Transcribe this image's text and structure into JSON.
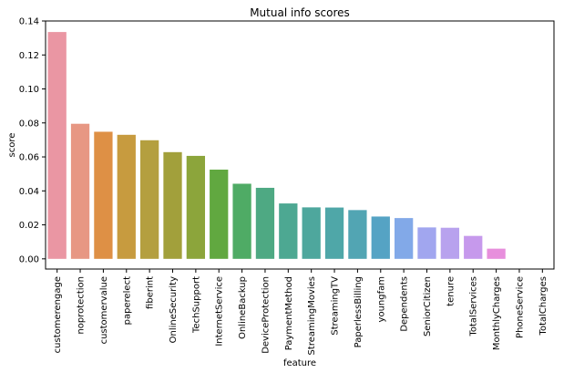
{
  "chart_data": {
    "type": "bar",
    "title": "Mutual info scores",
    "xlabel": "feature",
    "ylabel": "score",
    "ylim": [
      -0.006,
      0.14
    ],
    "yticks": [
      "0.00",
      "0.02",
      "0.04",
      "0.06",
      "0.08",
      "0.10",
      "0.12",
      "0.14"
    ],
    "grid": false,
    "categories": [
      "customerengage",
      "noprotection",
      "customervalue",
      "paperelect",
      "fiberint",
      "OnlineSecurity",
      "TechSupport",
      "InternetService",
      "OnlineBackup",
      "DeviceProtection",
      "PaymentMethod",
      "StreamingMovies",
      "StreamingTV",
      "PaperlessBilling",
      "youngfam",
      "Dependents",
      "SeniorCitizen",
      "tenure",
      "TotalServices",
      "MonthlyCharges",
      "PhoneService",
      "TotalCharges"
    ],
    "values": [
      0.1335,
      0.0795,
      0.0748,
      0.073,
      0.0698,
      0.0628,
      0.0606,
      0.0525,
      0.0442,
      0.0418,
      0.0326,
      0.0303,
      0.0302,
      0.0287,
      0.0249,
      0.024,
      0.0185,
      0.0183,
      0.0135,
      0.006,
      0.0,
      0.0
    ],
    "colors": [
      "#ea96a3",
      "#e79783",
      "#de9045",
      "#c79b3f",
      "#b49f3f",
      "#a2a03b",
      "#8ca53b",
      "#61a840",
      "#4fab65",
      "#4ea983",
      "#4da892",
      "#4ea79d",
      "#4fa7a8",
      "#52a5b3",
      "#55a3c4",
      "#82a9e8",
      "#a1a6ef",
      "#b8a2ee",
      "#c699ec",
      "#e78fdc",
      "#e48fcd",
      "#e391bd"
    ]
  }
}
